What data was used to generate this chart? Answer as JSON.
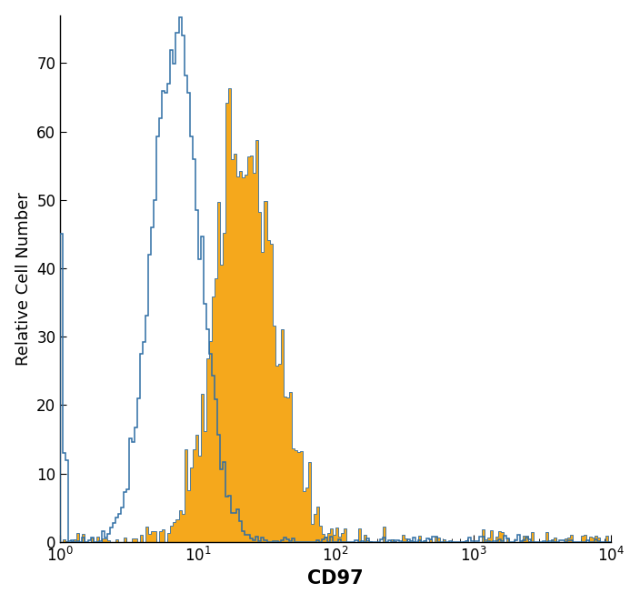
{
  "xlabel": "CD97",
  "ylabel": "Relative Cell Number",
  "xlim_log": [
    1,
    10000
  ],
  "ylim": [
    0,
    77
  ],
  "yticks": [
    0,
    10,
    20,
    30,
    40,
    50,
    60,
    70
  ],
  "blue_color": "#2e6da4",
  "orange_color": "#f5a81c",
  "background_color": "#ffffff",
  "blue_peak_height": 75,
  "orange_peak_height": 61,
  "xlabel_fontsize": 15,
  "ylabel_fontsize": 13,
  "tick_fontsize": 12,
  "n_bins": 200,
  "log_xmin": 0,
  "log_xmax": 4,
  "blue_mean_log10": 0.84,
  "blue_std_log10": 0.175,
  "orange_mean_log10": 1.34,
  "orange_std_log10": 0.22,
  "n_samples": 100000,
  "seed_blue": 42,
  "seed_orange": 17
}
